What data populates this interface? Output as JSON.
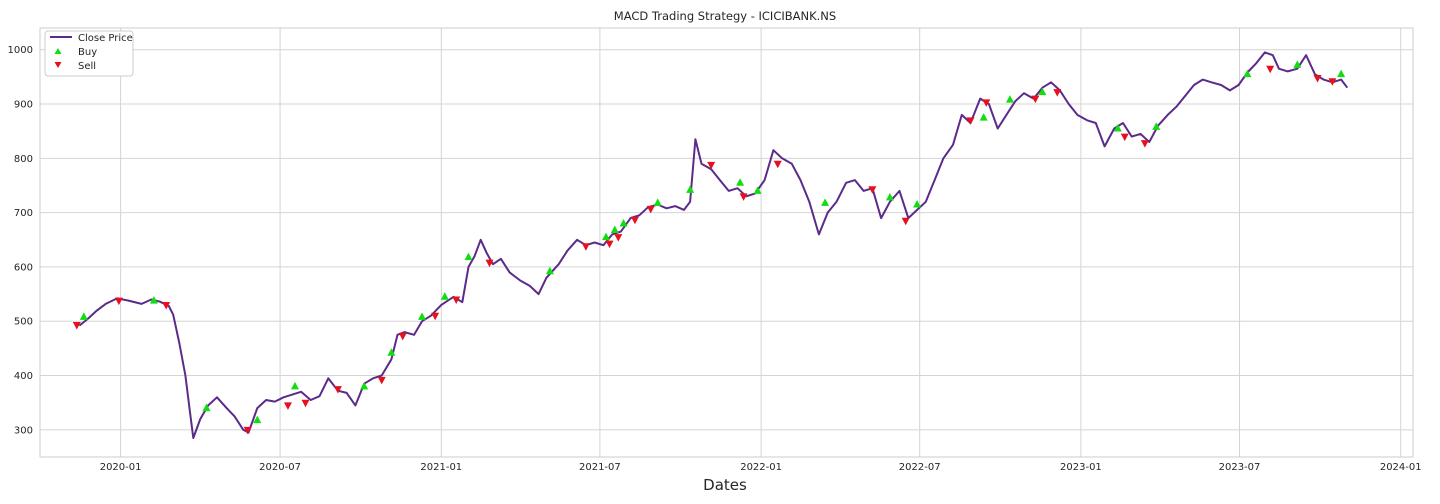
{
  "chart_data": {
    "type": "line",
    "title": "MACD Trading Strategy - ICICIBANK.NS",
    "xlabel": "Dates",
    "ylabel": "",
    "x_range": [
      "2019-10-01",
      "2024-01-15"
    ],
    "ylim": [
      250,
      1040
    ],
    "x_ticks": [
      "2020-01",
      "2020-07",
      "2021-01",
      "2021-07",
      "2022-01",
      "2022-07",
      "2023-01",
      "2023-07",
      "2024-01"
    ],
    "y_ticks": [
      300,
      400,
      500,
      600,
      700,
      800,
      900,
      1000
    ],
    "grid": true,
    "legend_position": "top-left",
    "colors": {
      "close": "#5b2b8a",
      "buy": "#11dd11",
      "sell": "#e8101e",
      "grid": "#d4d4d4",
      "frame": "#cccccc"
    },
    "series": [
      {
        "name": "Close Price",
        "points": [
          [
            "2019-11-15",
            492
          ],
          [
            "2019-11-25",
            505
          ],
          [
            "2019-12-05",
            520
          ],
          [
            "2019-12-15",
            532
          ],
          [
            "2019-12-28",
            542
          ],
          [
            "2020-01-10",
            538
          ],
          [
            "2020-01-25",
            532
          ],
          [
            "2020-02-05",
            540
          ],
          [
            "2020-02-15",
            536
          ],
          [
            "2020-02-25",
            528
          ],
          [
            "2020-03-01",
            512
          ],
          [
            "2020-03-08",
            460
          ],
          [
            "2020-03-15",
            400
          ],
          [
            "2020-03-20",
            335
          ],
          [
            "2020-03-24",
            285
          ],
          [
            "2020-04-01",
            320
          ],
          [
            "2020-04-10",
            345
          ],
          [
            "2020-04-20",
            360
          ],
          [
            "2020-05-01",
            340
          ],
          [
            "2020-05-10",
            325
          ],
          [
            "2020-05-20",
            300
          ],
          [
            "2020-05-26",
            295
          ],
          [
            "2020-06-05",
            340
          ],
          [
            "2020-06-15",
            355
          ],
          [
            "2020-06-25",
            352
          ],
          [
            "2020-07-05",
            360
          ],
          [
            "2020-07-15",
            365
          ],
          [
            "2020-07-25",
            370
          ],
          [
            "2020-08-05",
            355
          ],
          [
            "2020-08-15",
            362
          ],
          [
            "2020-08-25",
            395
          ],
          [
            "2020-09-05",
            372
          ],
          [
            "2020-09-15",
            368
          ],
          [
            "2020-09-25",
            345
          ],
          [
            "2020-10-05",
            385
          ],
          [
            "2020-10-15",
            395
          ],
          [
            "2020-10-25",
            400
          ],
          [
            "2020-11-05",
            430
          ],
          [
            "2020-11-12",
            475
          ],
          [
            "2020-11-20",
            480
          ],
          [
            "2020-12-01",
            475
          ],
          [
            "2020-12-10",
            500
          ],
          [
            "2020-12-20",
            510
          ],
          [
            "2021-01-01",
            530
          ],
          [
            "2021-01-15",
            545
          ],
          [
            "2021-01-25",
            535
          ],
          [
            "2021-02-01",
            600
          ],
          [
            "2021-02-08",
            620
          ],
          [
            "2021-02-15",
            650
          ],
          [
            "2021-02-22",
            625
          ],
          [
            "2021-03-01",
            605
          ],
          [
            "2021-03-10",
            615
          ],
          [
            "2021-03-20",
            590
          ],
          [
            "2021-04-01",
            575
          ],
          [
            "2021-04-12",
            565
          ],
          [
            "2021-04-22",
            550
          ],
          [
            "2021-05-01",
            580
          ],
          [
            "2021-05-15",
            605
          ],
          [
            "2021-05-25",
            630
          ],
          [
            "2021-06-05",
            650
          ],
          [
            "2021-06-15",
            640
          ],
          [
            "2021-06-25",
            645
          ],
          [
            "2021-07-05",
            640
          ],
          [
            "2021-07-15",
            660
          ],
          [
            "2021-07-25",
            665
          ],
          [
            "2021-08-05",
            690
          ],
          [
            "2021-08-15",
            695
          ],
          [
            "2021-08-25",
            710
          ],
          [
            "2021-09-05",
            715
          ],
          [
            "2021-09-15",
            708
          ],
          [
            "2021-09-25",
            712
          ],
          [
            "2021-10-05",
            705
          ],
          [
            "2021-10-12",
            720
          ],
          [
            "2021-10-18",
            835
          ],
          [
            "2021-10-25",
            790
          ],
          [
            "2021-11-05",
            780
          ],
          [
            "2021-11-15",
            760
          ],
          [
            "2021-11-25",
            740
          ],
          [
            "2021-12-05",
            745
          ],
          [
            "2021-12-15",
            730
          ],
          [
            "2021-12-25",
            735
          ],
          [
            "2022-01-05",
            760
          ],
          [
            "2022-01-15",
            815
          ],
          [
            "2022-01-25",
            800
          ],
          [
            "2022-02-05",
            790
          ],
          [
            "2022-02-15",
            760
          ],
          [
            "2022-02-25",
            720
          ],
          [
            "2022-03-08",
            660
          ],
          [
            "2022-03-18",
            700
          ],
          [
            "2022-03-28",
            720
          ],
          [
            "2022-04-08",
            755
          ],
          [
            "2022-04-18",
            760
          ],
          [
            "2022-04-28",
            740
          ],
          [
            "2022-05-08",
            745
          ],
          [
            "2022-05-18",
            690
          ],
          [
            "2022-05-28",
            720
          ],
          [
            "2022-06-08",
            740
          ],
          [
            "2022-06-18",
            690
          ],
          [
            "2022-06-28",
            705
          ],
          [
            "2022-07-08",
            720
          ],
          [
            "2022-07-18",
            760
          ],
          [
            "2022-07-28",
            800
          ],
          [
            "2022-08-08",
            825
          ],
          [
            "2022-08-18",
            880
          ],
          [
            "2022-08-28",
            865
          ],
          [
            "2022-09-08",
            910
          ],
          [
            "2022-09-18",
            900
          ],
          [
            "2022-09-28",
            855
          ],
          [
            "2022-10-08",
            880
          ],
          [
            "2022-10-18",
            905
          ],
          [
            "2022-10-28",
            920
          ],
          [
            "2022-11-08",
            910
          ],
          [
            "2022-11-18",
            930
          ],
          [
            "2022-11-28",
            940
          ],
          [
            "2022-12-08",
            925
          ],
          [
            "2022-12-18",
            900
          ],
          [
            "2022-12-28",
            880
          ],
          [
            "2023-01-08",
            870
          ],
          [
            "2023-01-18",
            865
          ],
          [
            "2023-01-28",
            822
          ],
          [
            "2023-02-08",
            855
          ],
          [
            "2023-02-18",
            865
          ],
          [
            "2023-02-28",
            840
          ],
          [
            "2023-03-10",
            845
          ],
          [
            "2023-03-20",
            830
          ],
          [
            "2023-03-30",
            860
          ],
          [
            "2023-04-10",
            880
          ],
          [
            "2023-04-20",
            895
          ],
          [
            "2023-04-30",
            915
          ],
          [
            "2023-05-10",
            935
          ],
          [
            "2023-05-20",
            945
          ],
          [
            "2023-05-30",
            940
          ],
          [
            "2023-06-10",
            935
          ],
          [
            "2023-06-20",
            925
          ],
          [
            "2023-06-30",
            935
          ],
          [
            "2023-07-10",
            958
          ],
          [
            "2023-07-20",
            975
          ],
          [
            "2023-07-30",
            995
          ],
          [
            "2023-08-08",
            990
          ],
          [
            "2023-08-15",
            965
          ],
          [
            "2023-08-25",
            960
          ],
          [
            "2023-09-05",
            965
          ],
          [
            "2023-09-15",
            990
          ],
          [
            "2023-09-25",
            955
          ],
          [
            "2023-10-05",
            945
          ],
          [
            "2023-10-15",
            940
          ],
          [
            "2023-10-25",
            945
          ],
          [
            "2023-11-01",
            930
          ]
        ]
      },
      {
        "name": "Buy",
        "marker": "triangle-up",
        "points": [
          [
            "2019-11-20",
            508
          ],
          [
            "2020-02-08",
            538
          ],
          [
            "2020-04-08",
            340
          ],
          [
            "2020-06-05",
            318
          ],
          [
            "2020-07-18",
            380
          ],
          [
            "2020-10-05",
            380
          ],
          [
            "2020-11-05",
            442
          ],
          [
            "2020-12-10",
            508
          ],
          [
            "2021-01-05",
            545
          ],
          [
            "2021-02-01",
            618
          ],
          [
            "2021-05-05",
            592
          ],
          [
            "2021-07-08",
            655
          ],
          [
            "2021-07-18",
            668
          ],
          [
            "2021-07-28",
            680
          ],
          [
            "2021-09-05",
            718
          ],
          [
            "2021-10-12",
            742
          ],
          [
            "2021-12-08",
            755
          ],
          [
            "2021-12-28",
            740
          ],
          [
            "2022-03-15",
            718
          ],
          [
            "2022-05-28",
            728
          ],
          [
            "2022-06-28",
            715
          ],
          [
            "2022-09-12",
            875
          ],
          [
            "2022-10-12",
            908
          ],
          [
            "2022-11-18",
            922
          ],
          [
            "2023-02-12",
            855
          ],
          [
            "2023-03-28",
            858
          ],
          [
            "2023-07-10",
            955
          ],
          [
            "2023-09-05",
            972
          ],
          [
            "2023-10-25",
            955
          ]
        ]
      },
      {
        "name": "Sell",
        "marker": "triangle-down",
        "points": [
          [
            "2019-11-12",
            493
          ],
          [
            "2019-12-30",
            538
          ],
          [
            "2020-02-22",
            530
          ],
          [
            "2020-05-25",
            300
          ],
          [
            "2020-07-10",
            345
          ],
          [
            "2020-07-30",
            350
          ],
          [
            "2020-09-05",
            375
          ],
          [
            "2020-10-25",
            392
          ],
          [
            "2020-11-18",
            473
          ],
          [
            "2020-12-25",
            510
          ],
          [
            "2021-01-18",
            540
          ],
          [
            "2021-02-25",
            608
          ],
          [
            "2021-06-15",
            638
          ],
          [
            "2021-07-12",
            643
          ],
          [
            "2021-07-22",
            655
          ],
          [
            "2021-08-10",
            687
          ],
          [
            "2021-08-28",
            707
          ],
          [
            "2021-11-05",
            788
          ],
          [
            "2021-12-12",
            730
          ],
          [
            "2022-01-20",
            790
          ],
          [
            "2022-05-08",
            743
          ],
          [
            "2022-06-15",
            685
          ],
          [
            "2022-08-28",
            870
          ],
          [
            "2022-09-15",
            903
          ],
          [
            "2022-11-10",
            910
          ],
          [
            "2022-12-05",
            922
          ],
          [
            "2023-02-20",
            840
          ],
          [
            "2023-03-15",
            828
          ],
          [
            "2023-08-05",
            965
          ],
          [
            "2023-09-28",
            948
          ],
          [
            "2023-10-15",
            942
          ]
        ]
      }
    ]
  }
}
